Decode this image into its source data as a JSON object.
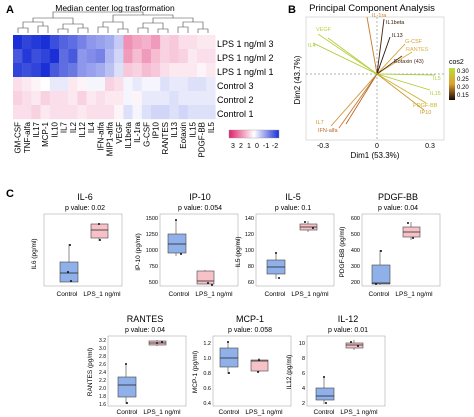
{
  "panel_letters": [
    "A",
    "B",
    "C"
  ],
  "heatmap": {
    "title": "Median center log trasformation",
    "rows": [
      "LPS 1 ng/ml 3",
      "LPS 1 ng/ml 2",
      "LPS 1 ng/ml 1",
      "Control 3",
      "Control 2",
      "Control 1"
    ],
    "columns": [
      "GM-CSF",
      "TNF-alfa",
      "IL17",
      "MCP-1",
      "IL10",
      "IL7",
      "IL2",
      "IL12",
      "IL4",
      "IFN-alfa",
      "MIP1-alfa",
      "VEGF",
      "IL1beta",
      "IL-1ra",
      "G-CSF",
      "IP10",
      "RANTES",
      "IL13",
      "Eotaxin",
      "IL15",
      "PDGF-BB",
      "IL5"
    ],
    "values": [
      [
        -2.0,
        -1.8,
        -1.9,
        -2.0,
        -1.7,
        -1.5,
        -1.4,
        -1.2,
        -1.0,
        -0.9,
        -0.8,
        -0.5,
        1.0,
        0.8,
        0.7,
        0.9,
        0.4,
        0.5,
        0.3,
        0.3,
        0.2,
        0.2
      ],
      [
        -1.6,
        -1.9,
        -1.7,
        -1.8,
        -2.0,
        -1.4,
        -1.6,
        -1.0,
        -1.1,
        -1.2,
        -0.7,
        -0.4,
        0.9,
        0.6,
        0.9,
        0.6,
        0.4,
        0.5,
        0.4,
        0.2,
        0.3,
        0.3
      ],
      [
        -1.8,
        -1.7,
        -1.8,
        -2.0,
        -1.6,
        -1.4,
        -1.3,
        -1.0,
        -0.9,
        -0.8,
        -0.6,
        -0.3,
        0.5,
        0.4,
        0.6,
        0.5,
        0.3,
        0.2,
        0.2,
        0.2,
        0.1,
        0.2
      ],
      [
        0.3,
        0.2,
        0.1,
        0.0,
        -0.2,
        -0.2,
        0.2,
        0.1,
        -0.1,
        -0.1,
        0.4,
        0.3,
        -0.1,
        -0.2,
        -0.1,
        -0.1,
        -0.3,
        -0.2,
        -0.2,
        -0.3,
        -0.3,
        -0.2
      ],
      [
        0.4,
        0.3,
        0.2,
        0.4,
        0.3,
        0.3,
        0.2,
        0.4,
        0.2,
        0.3,
        0.2,
        0.2,
        -0.1,
        0.1,
        -0.2,
        -0.2,
        -0.2,
        -0.3,
        -0.2,
        -0.2,
        -0.2,
        -0.2
      ],
      [
        0.3,
        0.3,
        0.4,
        0.2,
        0.3,
        0.3,
        0.3,
        0.2,
        0.3,
        0.3,
        0.3,
        0.1,
        -0.3,
        -0.1,
        -0.3,
        -0.4,
        -0.4,
        -0.3,
        -0.4,
        -0.3,
        -0.3,
        -0.3
      ]
    ],
    "legend_ticks": [
      "3",
      "2",
      "1",
      "0",
      "-1",
      "-2"
    ],
    "colors": {
      "low": "#1a2fd6",
      "mid": "#ffffff",
      "high": "#e0206a"
    }
  },
  "pca": {
    "title": "Principal Component Analysis",
    "xlabel": "Dim1 (53.3%)",
    "ylabel": "Dim2 (43.7%)",
    "xticks": [
      "-0.3",
      "0",
      "0.3"
    ],
    "legend_title": "cos2",
    "legend_ticks": [
      "0.30",
      "0.25",
      "0.20",
      "0.15"
    ],
    "labels": [
      "IL-1ra",
      "IL1beta",
      "IL13",
      "G-CSF",
      "RANTES",
      "Eotaxin (43)",
      "IL5",
      "IL15",
      "PDGF-BB",
      "IP10",
      "VEGF",
      "IL4",
      "IL7",
      "IFN-alfa"
    ]
  },
  "panel_c": {
    "y_axis_labels": [
      "IL6 (pg/ml)",
      "IP-10 (pg/ml)",
      "IL5 (pg/ml)",
      "PDGF-BB (pg/ml)",
      "RANTES (pg/ml)",
      "MCP-1 (pg/ml)",
      "IL12 (pg/ml)"
    ],
    "groups": [
      "Control",
      "LPS_1 ng/ml"
    ],
    "panels": [
      {
        "title": "IL-6",
        "pvalue": "p value: 0.02",
        "yticks": []
      },
      {
        "title": "IP-10",
        "pvalue": "p value: 0.054",
        "yticks": [
          "500",
          "750",
          "1000",
          "1250",
          "1500"
        ]
      },
      {
        "title": "IL-5",
        "pvalue": "p value: 0.1",
        "yticks": [
          "60",
          "80",
          "100",
          "120",
          "140"
        ]
      },
      {
        "title": "PDGF-BB",
        "pvalue": "p value: 0.04",
        "yticks": [
          "200",
          "300",
          "400",
          "500",
          "600"
        ]
      },
      {
        "title": "RANTES",
        "pvalue": "p value: 0.04",
        "yticks": [
          "3.2",
          "3.0",
          "2.8",
          "2.6",
          "2.4",
          "2.2",
          "2.0",
          "1.8",
          "1.6"
        ]
      },
      {
        "title": "MCP-1",
        "pvalue": "p value: 0.058",
        "yticks": [
          "1.2",
          "1.0",
          "0.8",
          "0.6",
          "0.4"
        ]
      },
      {
        "title": "IL-12",
        "pvalue": "p value: 0.01",
        "yticks": [
          "10",
          "8",
          "6",
          "4",
          "2"
        ]
      }
    ]
  }
}
